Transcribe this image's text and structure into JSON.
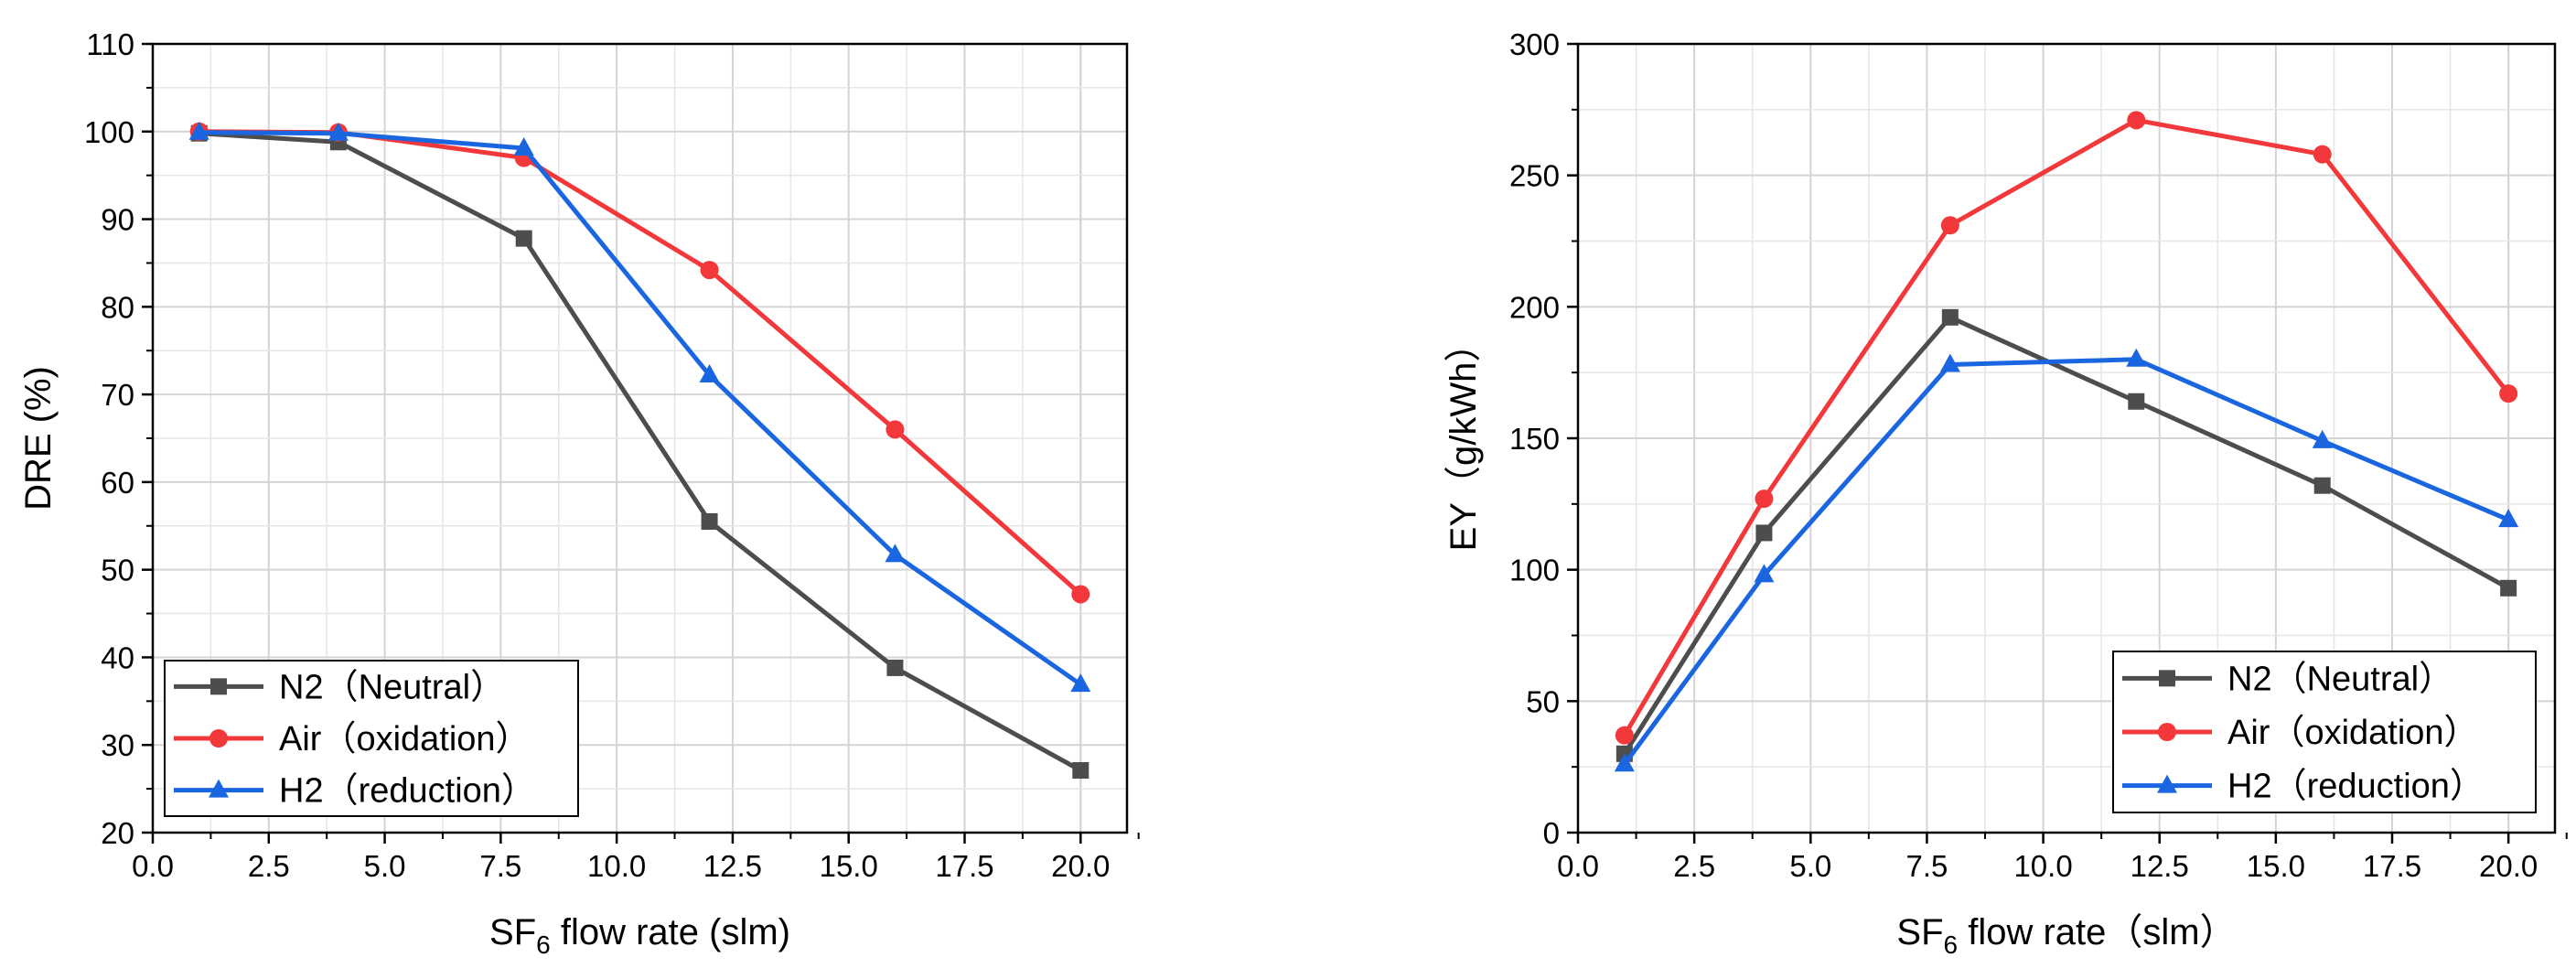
{
  "chart_data": [
    {
      "type": "line",
      "xlabel_main": "SF",
      "xlabel_sub": "6",
      "xlabel_rest": " flow rate (slm)",
      "ylabel": "DRE (%)",
      "xlim": [
        0,
        21
      ],
      "ylim": [
        20,
        110
      ],
      "xticks": [
        0,
        2.5,
        5,
        7.5,
        10,
        12.5,
        15,
        17.5,
        20
      ],
      "xtick_labels": [
        "0.0",
        "2.5",
        "5.0",
        "7.5",
        "10.0",
        "12.5",
        "15.0",
        "17.5",
        "20.0"
      ],
      "yticks": [
        20,
        30,
        40,
        50,
        60,
        70,
        80,
        90,
        100,
        110
      ],
      "ytick_labels": [
        "20",
        "30",
        "40",
        "50",
        "60",
        "70",
        "80",
        "90",
        "100",
        "110"
      ],
      "grid": true,
      "legend_position": "bottom-left",
      "x": [
        1,
        4,
        8,
        12,
        16,
        20
      ],
      "series": [
        {
          "name": "N2（Neutral）",
          "color": "#4d4d4d",
          "marker": "square",
          "values": [
            99.8,
            98.8,
            87.8,
            55.5,
            38.8,
            27.1
          ]
        },
        {
          "name": "Air（oxidation）",
          "color": "#f2383a",
          "marker": "circle",
          "values": [
            100,
            99.9,
            97.0,
            84.2,
            66.0,
            47.2
          ]
        },
        {
          "name": "H2（reduction）",
          "color": "#1a66e0",
          "marker": "triangle",
          "values": [
            99.9,
            99.8,
            98.1,
            72.2,
            51.7,
            36.9
          ]
        }
      ]
    },
    {
      "type": "line",
      "xlabel_main": "SF",
      "xlabel_sub": "6",
      "xlabel_rest": " flow rate（slm）",
      "ylabel": "EY（g/kWh）",
      "xlim": [
        0,
        21
      ],
      "ylim": [
        0,
        300
      ],
      "xticks": [
        0,
        2.5,
        5,
        7.5,
        10,
        12.5,
        15,
        17.5,
        20
      ],
      "xtick_labels": [
        "0.0",
        "2.5",
        "5.0",
        "7.5",
        "10.0",
        "12.5",
        "15.0",
        "17.5",
        "20.0"
      ],
      "yticks": [
        0,
        50,
        100,
        150,
        200,
        250,
        300
      ],
      "ytick_labels": [
        "0",
        "50",
        "100",
        "150",
        "200",
        "250",
        "300"
      ],
      "grid": true,
      "legend_position": "bottom-right",
      "x": [
        1,
        4,
        8,
        12,
        16,
        20
      ],
      "series": [
        {
          "name": "N2（Neutral）",
          "color": "#4d4d4d",
          "marker": "square",
          "values": [
            30,
            114,
            196,
            164,
            132,
            93
          ]
        },
        {
          "name": "Air（oxidation）",
          "color": "#f2383a",
          "marker": "circle",
          "values": [
            37,
            127,
            231,
            271,
            258,
            167
          ]
        },
        {
          "name": "H2（reduction）",
          "color": "#1a66e0",
          "marker": "triangle",
          "values": [
            26,
            98,
            178,
            180,
            149,
            119
          ]
        }
      ]
    }
  ]
}
